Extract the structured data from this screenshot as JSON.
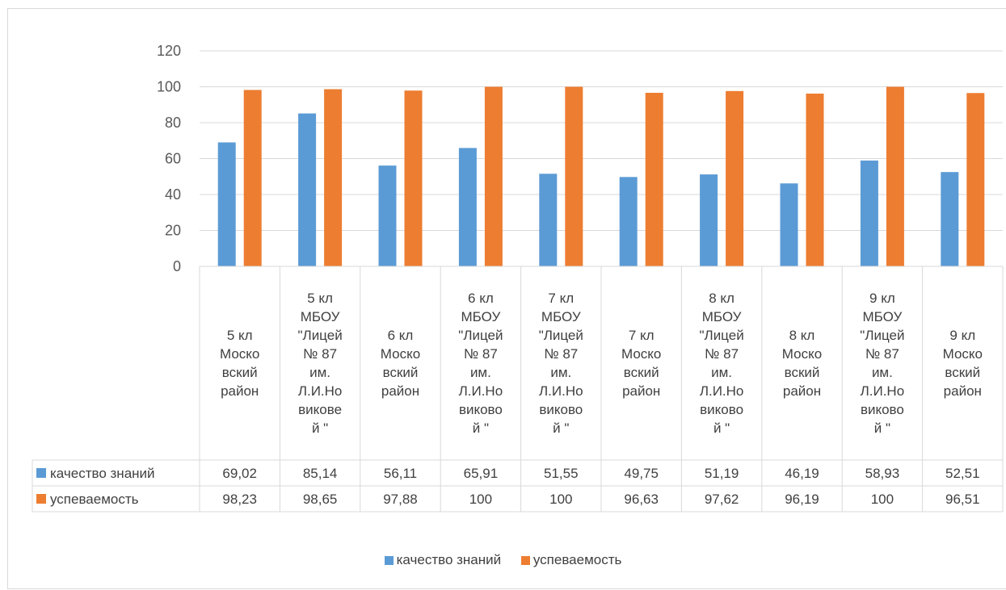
{
  "colors": {
    "quality": "#5b9bd5",
    "progress": "#ed7d31",
    "grid": "#d9d9d9",
    "text": "#404040"
  },
  "chart_data": {
    "type": "bar",
    "title": "",
    "xlabel": "",
    "ylabel": "",
    "ylim": [
      0,
      120
    ],
    "yticks": [
      0,
      20,
      40,
      60,
      80,
      100,
      120
    ],
    "grid": true,
    "legend_position": "bottom",
    "data_table": true,
    "categories": [
      [
        "5 кл",
        "Моско",
        "вский",
        "район"
      ],
      [
        "5 кл",
        "МБОУ",
        "\"Лицей",
        "№ 87",
        "им.",
        "Л.И.Но",
        "викове",
        "й  \""
      ],
      [
        "6 кл",
        "Моско",
        "вский",
        "район"
      ],
      [
        "6 кл",
        "МБОУ",
        "\"Лицей",
        "№ 87",
        "им.",
        "Л.И.Но",
        "виково",
        "й  \""
      ],
      [
        "7 кл",
        "МБОУ",
        "\"Лицей",
        "№ 87",
        "им.",
        "Л.И.Но",
        "виково",
        "й  \""
      ],
      [
        "7 кл",
        "Моско",
        "вский",
        "район"
      ],
      [
        "8 кл",
        "МБОУ",
        "\"Лицей",
        "№ 87",
        "им.",
        "Л.И.Но",
        "виково",
        "й  \""
      ],
      [
        "8 кл",
        "Моско",
        "вский",
        "район"
      ],
      [
        "9 кл",
        "МБОУ",
        "\"Лицей",
        "№ 87",
        "им.",
        "Л.И.Но",
        "виково",
        "й  \""
      ],
      [
        "9 кл",
        "Моско",
        "вский",
        "район"
      ]
    ],
    "series": [
      {
        "name": "качество знаний",
        "values": [
          69.02,
          85.14,
          56.11,
          65.91,
          51.55,
          49.75,
          51.19,
          46.19,
          58.93,
          52.51
        ],
        "labels": [
          "69,02",
          "85,14",
          "56,11",
          "65,91",
          "51,55",
          "49,75",
          "51,19",
          "46,19",
          "58,93",
          "52,51"
        ]
      },
      {
        "name": "успеваемость",
        "values": [
          98.23,
          98.65,
          97.88,
          100,
          100,
          96.63,
          97.62,
          96.19,
          100,
          96.51
        ],
        "labels": [
          "98,23",
          "98,65",
          "97,88",
          "100",
          "100",
          "96,63",
          "97,62",
          "96,19",
          "100",
          "96,51"
        ]
      }
    ]
  }
}
